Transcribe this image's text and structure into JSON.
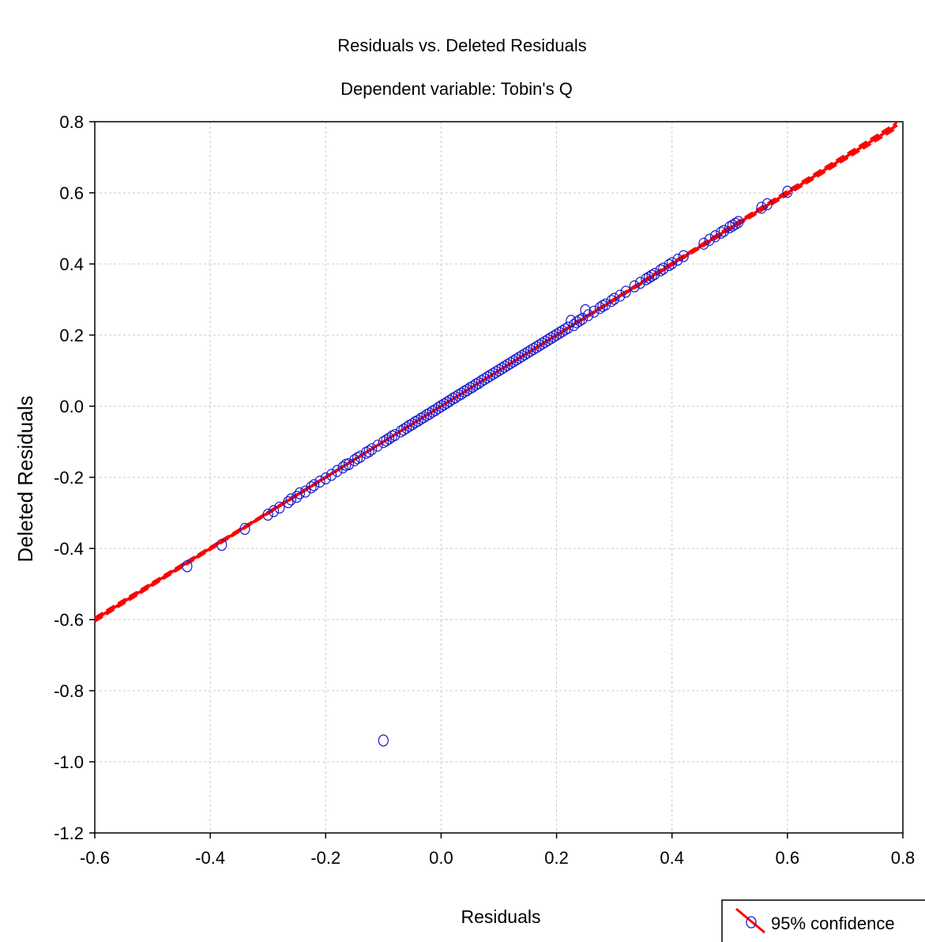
{
  "chart_data": {
    "type": "scatter",
    "title": "Residuals vs. Deleted Residuals",
    "subtitle": "Dependent variable: Tobin's Q",
    "xlabel": "Residuals",
    "ylabel": "Deleted Residuals",
    "xlim": [
      -0.6,
      0.8
    ],
    "ylim": [
      -1.2,
      0.8
    ],
    "x_ticks": [
      "-0.6",
      "-0.4",
      "-0.2",
      "0.0",
      "0.2",
      "0.4",
      "0.6",
      "0.8"
    ],
    "y_ticks": [
      "-1.2",
      "-1.0",
      "-0.8",
      "-0.6",
      "-0.4",
      "-0.2",
      "0.0",
      "0.2",
      "0.4",
      "0.6",
      "0.8"
    ],
    "grid": true,
    "legend": {
      "placement": "bottom-right",
      "label": "95% confidence"
    },
    "fit_line": {
      "slope": 1.0,
      "intercept": 0.0
    },
    "confidence_band": {
      "slope_low": 0.99,
      "slope_high": 1.01
    },
    "outliers": [
      {
        "x": -0.1,
        "y": -0.94
      }
    ],
    "point_color": "#1a1acc",
    "line_color": "#ff0000",
    "points": [
      [
        -0.44,
        -0.45
      ],
      [
        -0.38,
        -0.39
      ],
      [
        -0.34,
        -0.345
      ],
      [
        -0.3,
        -0.305
      ],
      [
        -0.29,
        -0.295
      ],
      [
        -0.28,
        -0.285
      ],
      [
        -0.265,
        -0.27
      ],
      [
        -0.26,
        -0.262
      ],
      [
        -0.25,
        -0.255
      ],
      [
        -0.245,
        -0.245
      ],
      [
        -0.235,
        -0.24
      ],
      [
        -0.225,
        -0.228
      ],
      [
        -0.22,
        -0.222
      ],
      [
        -0.21,
        -0.212
      ],
      [
        -0.2,
        -0.203
      ],
      [
        -0.19,
        -0.193
      ],
      [
        -0.18,
        -0.182
      ],
      [
        -0.17,
        -0.172
      ],
      [
        -0.165,
        -0.165
      ],
      [
        -0.16,
        -0.163
      ],
      [
        -0.15,
        -0.152
      ],
      [
        -0.145,
        -0.146
      ],
      [
        -0.14,
        -0.142
      ],
      [
        -0.13,
        -0.131
      ],
      [
        -0.125,
        -0.127
      ],
      [
        -0.12,
        -0.121
      ],
      [
        -0.11,
        -0.111
      ],
      [
        -0.1,
        -0.101
      ],
      [
        -0.095,
        -0.096
      ],
      [
        -0.09,
        -0.091
      ],
      [
        -0.085,
        -0.085
      ],
      [
        -0.08,
        -0.081
      ],
      [
        -0.07,
        -0.071
      ],
      [
        -0.065,
        -0.066
      ],
      [
        -0.06,
        -0.061
      ],
      [
        -0.055,
        -0.055
      ],
      [
        -0.05,
        -0.051
      ],
      [
        -0.045,
        -0.045
      ],
      [
        -0.04,
        -0.041
      ],
      [
        -0.035,
        -0.035
      ],
      [
        -0.03,
        -0.031
      ],
      [
        -0.025,
        -0.025
      ],
      [
        -0.02,
        -0.021
      ],
      [
        -0.015,
        -0.015
      ],
      [
        -0.01,
        -0.011
      ],
      [
        -0.005,
        -0.005
      ],
      [
        0.0,
        0.0
      ],
      [
        0.005,
        0.005
      ],
      [
        0.01,
        0.01
      ],
      [
        0.015,
        0.015
      ],
      [
        0.02,
        0.021
      ],
      [
        0.025,
        0.025
      ],
      [
        0.03,
        0.031
      ],
      [
        0.035,
        0.035
      ],
      [
        0.04,
        0.041
      ],
      [
        0.045,
        0.045
      ],
      [
        0.05,
        0.051
      ],
      [
        0.055,
        0.055
      ],
      [
        0.06,
        0.061
      ],
      [
        0.065,
        0.065
      ],
      [
        0.07,
        0.071
      ],
      [
        0.075,
        0.076
      ],
      [
        0.08,
        0.081
      ],
      [
        0.085,
        0.086
      ],
      [
        0.09,
        0.091
      ],
      [
        0.095,
        0.096
      ],
      [
        0.1,
        0.101
      ],
      [
        0.105,
        0.106
      ],
      [
        0.11,
        0.111
      ],
      [
        0.115,
        0.116
      ],
      [
        0.12,
        0.121
      ],
      [
        0.125,
        0.126
      ],
      [
        0.13,
        0.131
      ],
      [
        0.135,
        0.136
      ],
      [
        0.14,
        0.141
      ],
      [
        0.145,
        0.146
      ],
      [
        0.15,
        0.151
      ],
      [
        0.155,
        0.156
      ],
      [
        0.16,
        0.161
      ],
      [
        0.165,
        0.166
      ],
      [
        0.17,
        0.171
      ],
      [
        0.175,
        0.176
      ],
      [
        0.18,
        0.181
      ],
      [
        0.185,
        0.186
      ],
      [
        0.19,
        0.191
      ],
      [
        0.195,
        0.196
      ],
      [
        0.2,
        0.201
      ],
      [
        0.205,
        0.206
      ],
      [
        0.21,
        0.211
      ],
      [
        0.215,
        0.216
      ],
      [
        0.22,
        0.221
      ],
      [
        0.225,
        0.24
      ],
      [
        0.23,
        0.228
      ],
      [
        0.235,
        0.236
      ],
      [
        0.24,
        0.241
      ],
      [
        0.245,
        0.246
      ],
      [
        0.25,
        0.27
      ],
      [
        0.255,
        0.256
      ],
      [
        0.265,
        0.266
      ],
      [
        0.275,
        0.276
      ],
      [
        0.28,
        0.282
      ],
      [
        0.285,
        0.286
      ],
      [
        0.295,
        0.296
      ],
      [
        0.3,
        0.302
      ],
      [
        0.31,
        0.311
      ],
      [
        0.32,
        0.322
      ],
      [
        0.335,
        0.337
      ],
      [
        0.345,
        0.347
      ],
      [
        0.355,
        0.357
      ],
      [
        0.36,
        0.362
      ],
      [
        0.365,
        0.367
      ],
      [
        0.37,
        0.372
      ],
      [
        0.38,
        0.382
      ],
      [
        0.385,
        0.387
      ],
      [
        0.395,
        0.397
      ],
      [
        0.4,
        0.402
      ],
      [
        0.41,
        0.412
      ],
      [
        0.42,
        0.422
      ],
      [
        0.455,
        0.457
      ],
      [
        0.465,
        0.468
      ],
      [
        0.475,
        0.478
      ],
      [
        0.485,
        0.488
      ],
      [
        0.49,
        0.493
      ],
      [
        0.5,
        0.503
      ],
      [
        0.505,
        0.508
      ],
      [
        0.51,
        0.513
      ],
      [
        0.515,
        0.518
      ],
      [
        0.555,
        0.558
      ],
      [
        0.565,
        0.568
      ],
      [
        0.6,
        0.603
      ]
    ]
  }
}
